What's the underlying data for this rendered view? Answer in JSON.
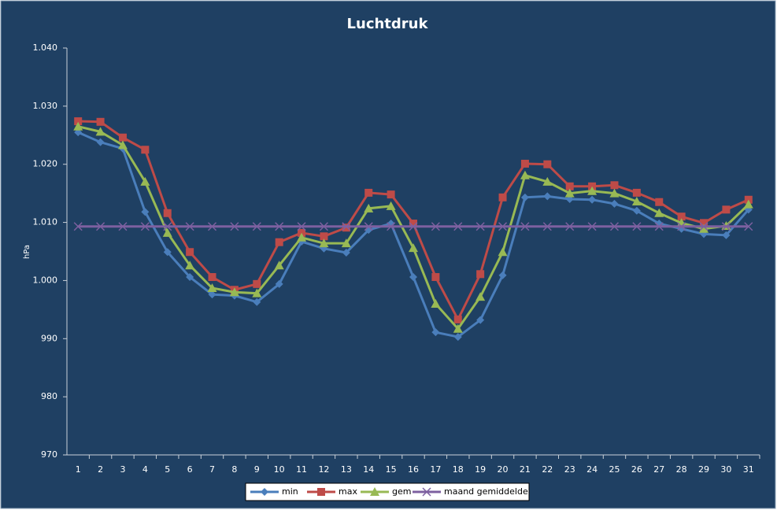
{
  "chart_data": {
    "type": "line",
    "title": "Luchtdruk",
    "y_label": "hPa",
    "categories": [
      "1",
      "2",
      "3",
      "4",
      "5",
      "6",
      "7",
      "8",
      "9",
      "10",
      "11",
      "12",
      "13",
      "14",
      "15",
      "16",
      "17",
      "18",
      "19",
      "20",
      "21",
      "22",
      "23",
      "24",
      "25",
      "26",
      "27",
      "28",
      "29",
      "30",
      "31"
    ],
    "ylim": [
      970,
      1040
    ],
    "yticks": [
      970,
      980,
      990,
      {
        "value": 1000,
        "label": "1.000"
      },
      {
        "value": 1010,
        "label": "1.010"
      },
      {
        "value": 1020,
        "label": "1.020"
      },
      {
        "value": 1030,
        "label": "1.030"
      },
      {
        "value": 1040,
        "label": "1.040"
      }
    ],
    "grid": false,
    "legend": "bottom",
    "series": [
      {
        "name": "min",
        "color": "#4a7ebb",
        "marker": "diamond",
        "values": [
          1025.5,
          1023.8,
          1022.7,
          1011.8,
          1004.9,
          1000.6,
          997.6,
          997.4,
          996.3,
          999.4,
          1006.7,
          1005.5,
          1004.8,
          1008.7,
          1009.8,
          1000.6,
          991.1,
          990.3,
          993.2,
          1000.9,
          1014.3,
          1014.5,
          1014.0,
          1013.9,
          1013.2,
          1012.0,
          1009.8,
          1008.9,
          1008.0,
          1007.8,
          1012.2
        ]
      },
      {
        "name": "max",
        "color": "#be4b48",
        "marker": "square",
        "values": [
          1027.4,
          1027.3,
          1024.6,
          1022.5,
          1011.6,
          1004.9,
          1000.6,
          998.4,
          999.4,
          1006.6,
          1008.2,
          1007.6,
          1009.1,
          1015.1,
          1014.8,
          1009.8,
          1000.6,
          993.3,
          1001.1,
          1014.3,
          1020.1,
          1020.0,
          1016.2,
          1016.2,
          1016.4,
          1015.1,
          1013.5,
          1011.0,
          1009.9,
          1012.2,
          1013.9
        ]
      },
      {
        "name": "gem",
        "color": "#98b954",
        "marker": "triangle",
        "values": [
          1026.5,
          1025.6,
          1023.3,
          1017.0,
          1008.2,
          1002.6,
          998.7,
          998.0,
          997.8,
          1002.6,
          1007.4,
          1006.4,
          1006.4,
          1012.4,
          1012.8,
          1005.6,
          996.0,
          991.7,
          997.2,
          1004.9,
          1018.1,
          1017.0,
          1015.0,
          1015.4,
          1015.0,
          1013.6,
          1011.6,
          1009.9,
          1008.9,
          1009.4,
          1013.1
        ]
      },
      {
        "name": "maand gemiddelde",
        "color": "#7d60a0",
        "marker": "x",
        "values": [
          1009.3,
          1009.3,
          1009.3,
          1009.3,
          1009.3,
          1009.3,
          1009.3,
          1009.3,
          1009.3,
          1009.3,
          1009.3,
          1009.3,
          1009.3,
          1009.3,
          1009.3,
          1009.3,
          1009.3,
          1009.3,
          1009.3,
          1009.3,
          1009.3,
          1009.3,
          1009.3,
          1009.3,
          1009.3,
          1009.3,
          1009.3,
          1009.3,
          1009.3,
          1009.3,
          1009.3
        ]
      }
    ]
  }
}
